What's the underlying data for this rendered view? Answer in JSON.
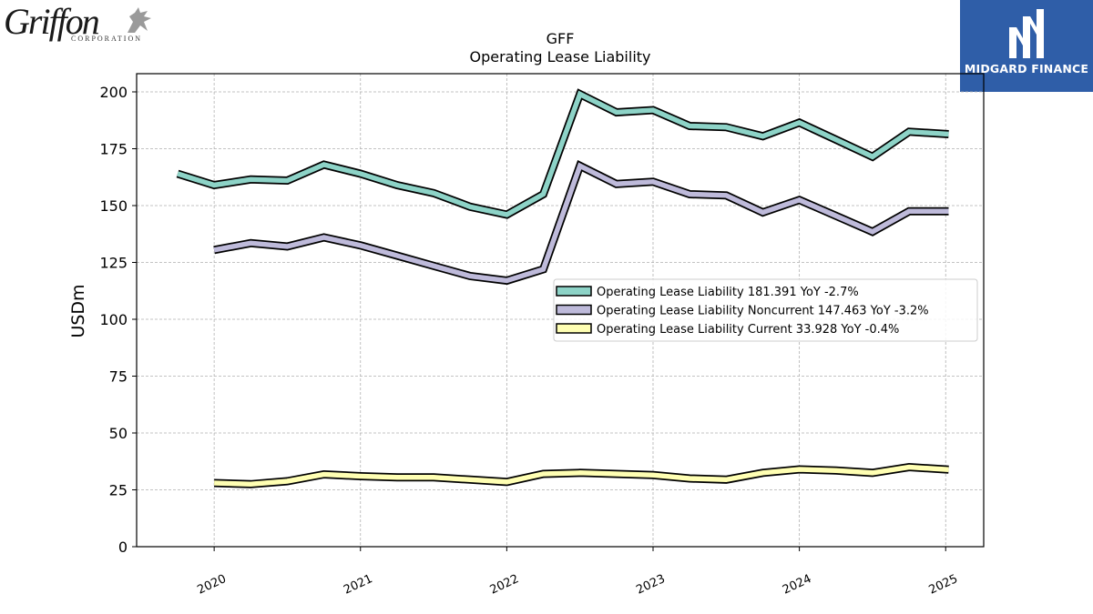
{
  "branding": {
    "left_logo_text": "Griffon",
    "left_logo_subtext": "CORPORATION",
    "right_logo_text": "MIDGARD FINANCE",
    "right_logo_bg": "#2f5ea8"
  },
  "chart_data": {
    "type": "line",
    "title": "GFF",
    "subtitle": "Operating Lease Liability",
    "ylabel": "USDm",
    "xlabel": "",
    "ylim": [
      0,
      208
    ],
    "xlim": [
      2019.47,
      2025.26
    ],
    "yticks": [
      0,
      25,
      50,
      75,
      100,
      125,
      150,
      175,
      200
    ],
    "xticks": [
      "2020",
      "2021",
      "2022",
      "2023",
      "2024",
      "2025"
    ],
    "grid": true,
    "legend_position": "center-right",
    "series": [
      {
        "name": "Operating Lease Liability",
        "legend_label": "Operating Lease Liability  181.391 YoY -2.7%",
        "color": "#8dd3c7",
        "x": [
          2019.75,
          2020.0,
          2020.25,
          2020.5,
          2020.75,
          2021.0,
          2021.25,
          2021.5,
          2021.75,
          2022.0,
          2022.25,
          2022.5,
          2022.75,
          2023.0,
          2023.25,
          2023.5,
          2023.75,
          2024.0,
          2024.25,
          2024.5,
          2024.75,
          2025.02
        ],
        "values": [
          164,
          159,
          161.5,
          161,
          168,
          164,
          159,
          155.5,
          149.5,
          146,
          155,
          199,
          191,
          192,
          185,
          184.5,
          180.5,
          186.5,
          179,
          171.5,
          182.5,
          181.4
        ]
      },
      {
        "name": "Operating Lease Liability Noncurrent",
        "legend_label": "Operating Lease Liability Noncurrent  147.463 YoY -3.2%",
        "color": "#bebada",
        "x": [
          2020.0,
          2020.25,
          2020.5,
          2020.75,
          2021.0,
          2021.25,
          2021.5,
          2021.75,
          2022.0,
          2022.25,
          2022.5,
          2022.75,
          2023.0,
          2023.25,
          2023.5,
          2023.75,
          2024.0,
          2024.25,
          2024.5,
          2024.75,
          2025.02
        ],
        "values": [
          130.5,
          133.5,
          132,
          136,
          132.5,
          128,
          123.5,
          119,
          117,
          122,
          167.5,
          159.5,
          160.5,
          155,
          154.5,
          147,
          152.5,
          145.5,
          138.5,
          147.5,
          147.5
        ]
      },
      {
        "name": "Operating Lease Liability Current",
        "legend_label": "Operating Lease Liability Current  33.928 YoY -0.4%",
        "color": "#ffffb3",
        "x": [
          2020.0,
          2020.25,
          2020.5,
          2020.75,
          2021.0,
          2021.25,
          2021.5,
          2021.75,
          2022.0,
          2022.25,
          2022.5,
          2022.75,
          2023.0,
          2023.25,
          2023.5,
          2023.75,
          2024.0,
          2024.25,
          2024.5,
          2024.75,
          2025.02
        ],
        "values": [
          28,
          27.5,
          28.8,
          31.8,
          31,
          30.5,
          30.5,
          29.5,
          28.5,
          32,
          32.5,
          32,
          31.5,
          30,
          29.5,
          32.5,
          34,
          33.5,
          32.5,
          35,
          33.9
        ]
      }
    ]
  }
}
